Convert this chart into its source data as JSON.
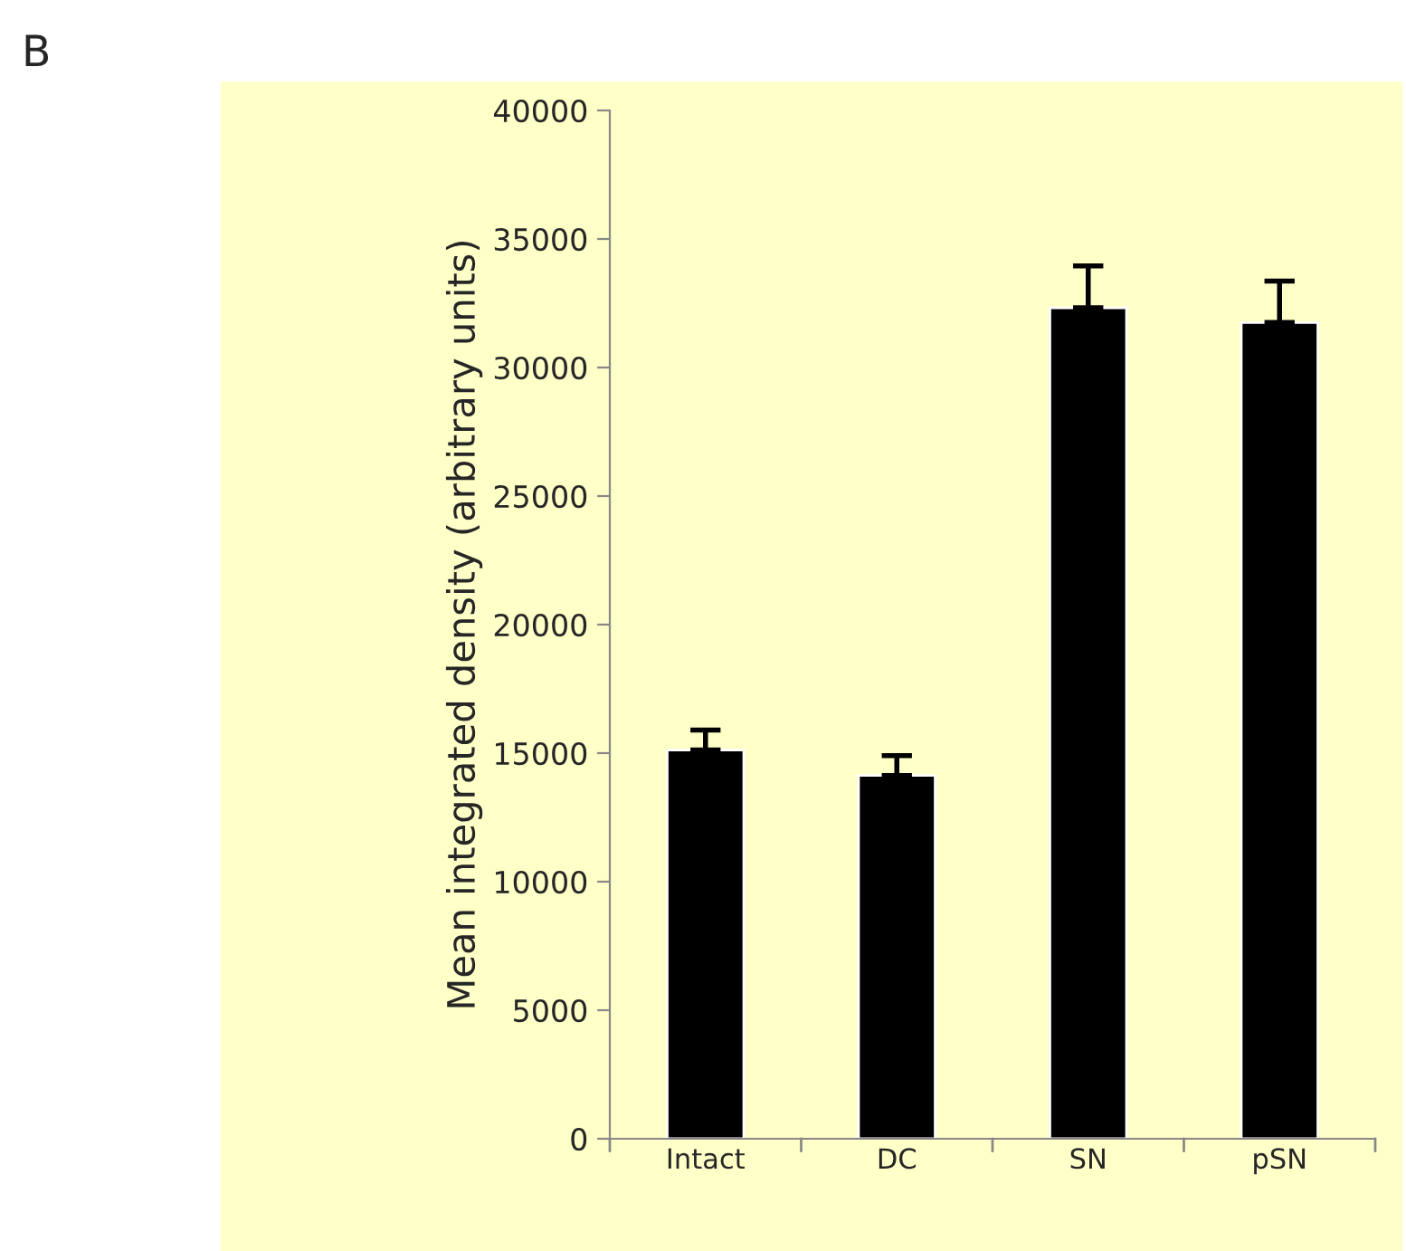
{
  "chart_data": {
    "type": "bar",
    "ylabel": "Mean integrated density (arbitrary units)",
    "categories": [
      "Intact",
      "DC",
      "SN",
      "pSN"
    ],
    "values": [
      15120,
      14130,
      32320,
      31750
    ],
    "errors": [
      780,
      770,
      1630,
      1610
    ],
    "color": "#000000",
    "ylim": [
      0,
      40000
    ],
    "yticks": [
      0,
      5000,
      10000,
      15000,
      20000,
      25000,
      30000,
      35000,
      40000
    ],
    "grid": false,
    "annotations": [
      "B"
    ]
  }
}
